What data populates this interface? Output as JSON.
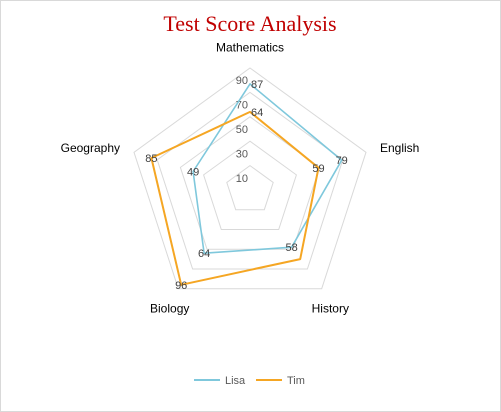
{
  "chart_data": {
    "type": "radar",
    "title": "Test Score Analysis",
    "categories": [
      "Mathematics",
      "English",
      "History",
      "Biology",
      "Geography"
    ],
    "ticks": [
      10,
      30,
      50,
      70,
      90
    ],
    "rmax": 100,
    "gridline_values": [
      0,
      20,
      40,
      60,
      80,
      100
    ],
    "grid": true,
    "legend": "bottom",
    "series": [
      {
        "name": "Lisa",
        "values": [
          87,
          79,
          58,
          64,
          49
        ],
        "color": "#7fc8dc"
      },
      {
        "name": "Tim",
        "values": [
          64,
          59,
          70,
          96,
          85
        ],
        "color": "#f5a623"
      }
    ],
    "data_labels": [
      {
        "series": "Lisa",
        "category": "Mathematics",
        "text": "87"
      },
      {
        "series": "Tim",
        "category": "Mathematics",
        "text": "64"
      },
      {
        "series": "Lisa",
        "category": "English",
        "text": "79"
      },
      {
        "series": "Tim",
        "category": "English",
        "text": "59"
      },
      {
        "series": "Lisa",
        "category": "History",
        "text": "58"
      },
      {
        "series": "Lisa",
        "category": "Biology",
        "text": "64"
      },
      {
        "series": "Tim",
        "category": "Biology",
        "text": "96"
      },
      {
        "series": "Lisa",
        "category": "Geography",
        "text": "49"
      },
      {
        "series": "Tim",
        "category": "Geography",
        "text": "85"
      }
    ],
    "colors": {
      "title": "#c00000",
      "grid": "#d9d9d9"
    }
  }
}
